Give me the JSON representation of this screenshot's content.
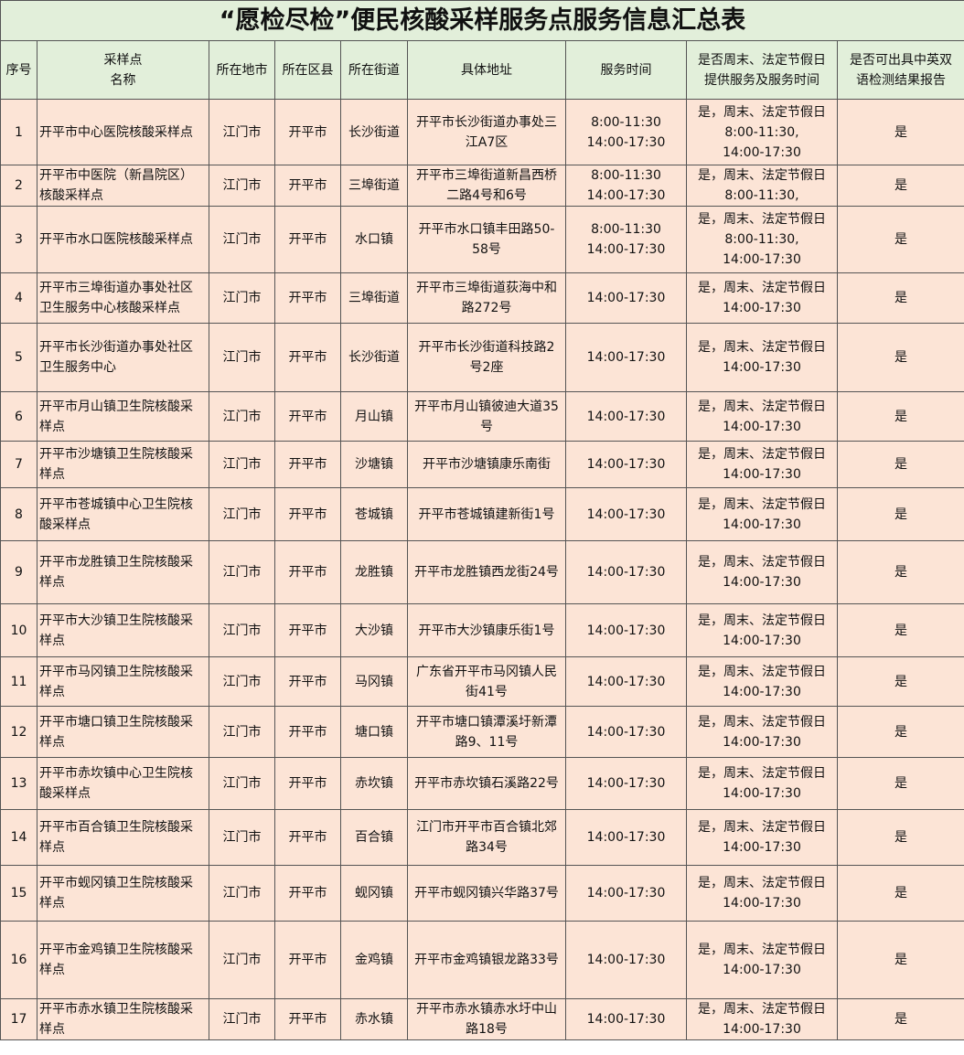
{
  "title": "“愿检尽检”便民核酸采样服务点服务信息汇总表",
  "columns": [
    "序号",
    "采样点\n名称",
    "所在地市",
    "所在区县",
    "所在街道",
    "具体地址",
    "服务时间",
    "是否周末、法定节假日\n提供服务及服务时间",
    "是否可出具中英双\n语检测结果报告"
  ],
  "rows": [
    [
      "1",
      "开平市中心医院核酸采样点",
      "江门市",
      "开平市",
      "长沙街道",
      "开平市长沙街道办事处三\n江A7区",
      "8:00-11:30\n14:00-17:30",
      "是，周末、法定节假日\n8:00-11:30,\n14:00-17:30",
      "是"
    ],
    [
      "2",
      "开平市中医院（新昌院区）\n核酸采样点",
      "江门市",
      "开平市",
      "三埠街道",
      "开平市三埠街道新昌西桥\n二路4号和6号",
      "8:00-11:30\n14:00-17:30",
      "是，周末、法定节假日\n8:00-11:30,",
      "是"
    ],
    [
      "3",
      "开平市水口医院核酸采样点",
      "江门市",
      "开平市",
      "水口镇",
      "开平市水口镇丰田路50-\n58号",
      "8:00-11:30\n14:00-17:30",
      "是，周末、法定节假日\n8:00-11:30,\n14:00-17:30",
      "是"
    ],
    [
      "4",
      "开平市三埠街道办事处社区\n卫生服务中心核酸采样点",
      "江门市",
      "开平市",
      "三埠街道",
      "开平市三埠街道荻海中和\n路272号",
      "14:00-17:30",
      "是，周末、法定节假日\n14:00-17:30",
      "是"
    ],
    [
      "5",
      "开平市长沙街道办事处社区\n卫生服务中心",
      "江门市",
      "开平市",
      "长沙街道",
      "开平市长沙街道科技路2\n号2座",
      "14:00-17:30",
      "是，周末、法定节假日\n14:00-17:30",
      "是"
    ],
    [
      "6",
      "开平市月山镇卫生院核酸采\n样点",
      "江门市",
      "开平市",
      "月山镇",
      "开平市月山镇彼迪大道35\n号",
      "14:00-17:30",
      "是，周末、法定节假日\n14:00-17:30",
      "是"
    ],
    [
      "7",
      "开平市沙塘镇卫生院核酸采\n样点",
      "江门市",
      "开平市",
      "沙塘镇",
      "开平市沙塘镇康乐南街",
      "14:00-17:30",
      "是，周末、法定节假日\n14:00-17:30",
      "是"
    ],
    [
      "8",
      "开平市苍城镇中心卫生院核\n酸采样点",
      "江门市",
      "开平市",
      "苍城镇",
      "开平市苍城镇建新街1号",
      "14:00-17:30",
      "是，周末、法定节假日\n14:00-17:30",
      "是"
    ],
    [
      "9",
      "开平市龙胜镇卫生院核酸采\n样点",
      "江门市",
      "开平市",
      "龙胜镇",
      "开平市龙胜镇西龙街24号",
      "14:00-17:30",
      "是，周末、法定节假日\n14:00-17:30",
      "是"
    ],
    [
      "10",
      "开平市大沙镇卫生院核酸采\n样点",
      "江门市",
      "开平市",
      "大沙镇",
      "开平市大沙镇康乐街1号",
      "14:00-17:30",
      "是，周末、法定节假日\n14:00-17:30",
      "是"
    ],
    [
      "11",
      "开平市马冈镇卫生院核酸采\n样点",
      "江门市",
      "开平市",
      "马冈镇",
      "广东省开平市马冈镇人民\n街41号",
      "14:00-17:30",
      "是，周末、法定节假日\n14:00-17:30",
      "是"
    ],
    [
      "12",
      "开平市塘口镇卫生院核酸采\n样点",
      "江门市",
      "开平市",
      "塘口镇",
      "开平市塘口镇潭溪圩新潭\n路9、11号",
      "14:00-17:30",
      "是，周末、法定节假日\n14:00-17:30",
      "是"
    ],
    [
      "13",
      "开平市赤坎镇中心卫生院核\n酸采样点",
      "江门市",
      "开平市",
      "赤坎镇",
      "开平市赤坎镇石溪路22号",
      "14:00-17:30",
      "是，周末、法定节假日\n14:00-17:30",
      "是"
    ],
    [
      "14",
      "开平市百合镇卫生院核酸采\n样点",
      "江门市",
      "开平市",
      "百合镇",
      "江门市开平市百合镇北郊\n路34号",
      "14:00-17:30",
      "是，周末、法定节假日\n14:00-17:30",
      "是"
    ],
    [
      "15",
      "开平市蚬冈镇卫生院核酸采\n样点",
      "江门市",
      "开平市",
      "蚬冈镇",
      "开平市蚬冈镇兴华路37号",
      "14:00-17:30",
      "是，周末、法定节假日\n14:00-17:30",
      "是"
    ],
    [
      "16",
      "开平市金鸡镇卫生院核酸采\n样点",
      "江门市",
      "开平市",
      "金鸡镇",
      "开平市金鸡镇银龙路33号",
      "14:00-17:30",
      "是，周末、法定节假日\n14:00-17:30",
      "是"
    ],
    [
      "17",
      "开平市赤水镇卫生院核酸采\n样点",
      "江门市",
      "开平市",
      "赤水镇",
      "开平市赤水镇赤水圩中山\n路18号",
      "14:00-17:30",
      "是，周末、法定节假日\n14:00-17:30",
      "是"
    ]
  ],
  "colors": {
    "header_bg": "#e2efda",
    "row_bg": "#fce4d6",
    "border": "#555555"
  }
}
